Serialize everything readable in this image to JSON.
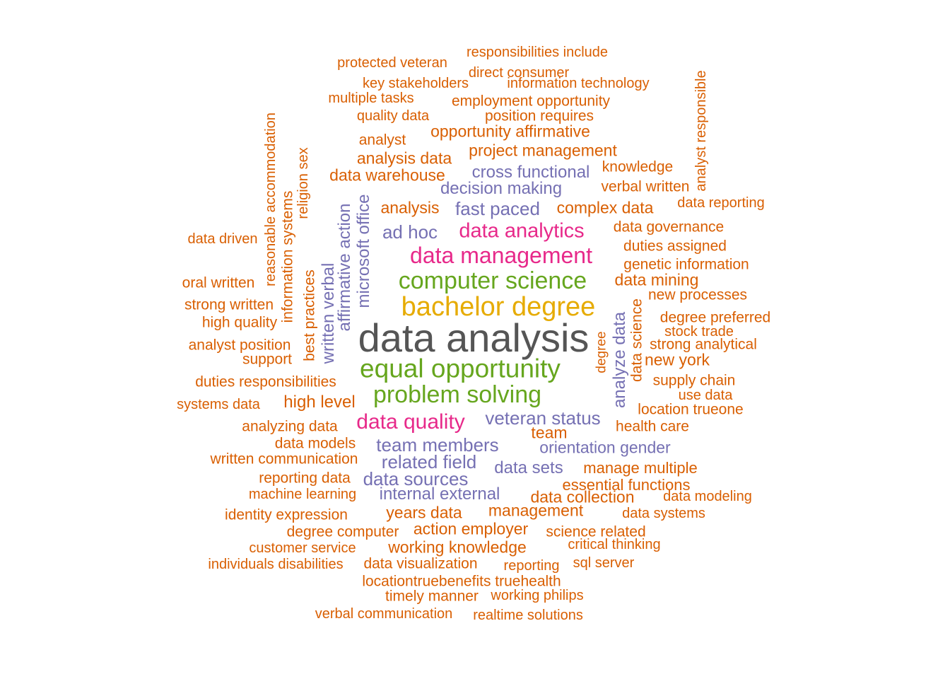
{
  "colors": {
    "orange": "#D95F02",
    "purple": "#7570B3",
    "pink": "#E7298A",
    "green": "#66A61E",
    "gold": "#E6AB02",
    "gray": "#555555"
  },
  "words": [
    "data analysis",
    "bachelor degree",
    "computer science",
    "equal opportunity",
    "problem solving",
    "data management",
    "data analytics",
    "data quality",
    "veteran status",
    "team members",
    "related field",
    "data sources",
    "internal external",
    "data sets",
    "orientation gender",
    "ad hoc",
    "fast paced",
    "decision making",
    "cross functional",
    "microsoft office",
    "affirmative action",
    "written verbal",
    "analyze data",
    "responsibilities include",
    "protected veteran",
    "direct consumer",
    "key stakeholders",
    "information technology",
    "multiple tasks",
    "employment opportunity",
    "quality data",
    "position requires",
    "analyst",
    "opportunity affirmative",
    "analysis data",
    "project management",
    "data warehouse",
    "knowledge",
    "verbal written",
    "analyst responsible",
    "analysis",
    "complex data",
    "data reporting",
    "data governance",
    "duties assigned",
    "genetic information",
    "data mining",
    "new processes",
    "degree preferred",
    "stock trade",
    "strong analytical",
    "new york",
    "supply chain",
    "use data",
    "location trueone",
    "health care",
    "team",
    "manage multiple",
    "essential functions",
    "data collection",
    "data modeling",
    "data systems",
    "management",
    "science related",
    "critical thinking",
    "reporting",
    "sql server",
    "working philips",
    "realtime solutions",
    "reasonable accommodation",
    "religion sex",
    "information systems",
    "best practices",
    "data science",
    "degree",
    "data driven",
    "oral written",
    "strong written",
    "high quality",
    "analyst position",
    "support",
    "duties responsibilities",
    "systems data",
    "high level",
    "analyzing data",
    "data models",
    "written communication",
    "reporting data",
    "machine learning",
    "identity expression",
    "degree computer",
    "action employer",
    "customer service",
    "working knowledge",
    "individuals disabilities",
    "data visualization",
    "locationtruebenefits truehealth",
    "timely manner",
    "verbal communication",
    "years data"
  ]
}
